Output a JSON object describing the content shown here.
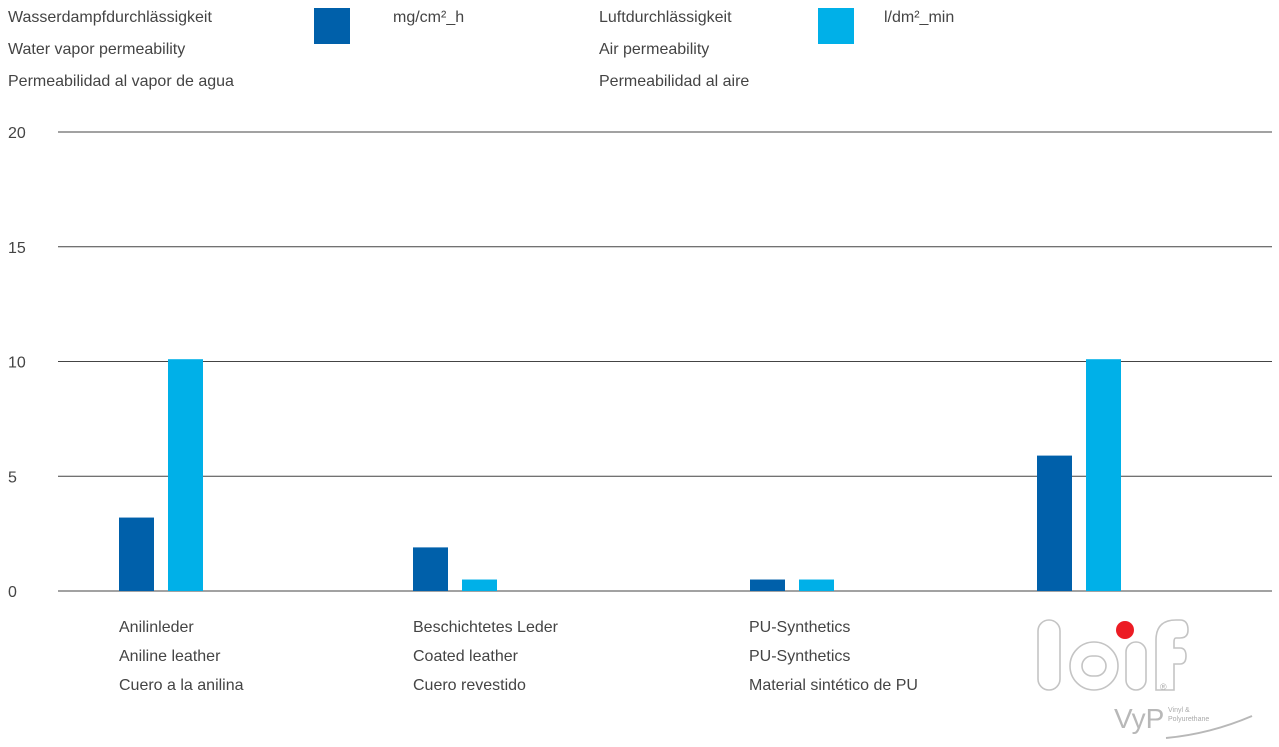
{
  "legend": {
    "series1": {
      "lines": [
        "Wasserdampfdurchlässigkeit",
        "Water vapor permeability",
        "Permeabilidad al vapor de agua"
      ],
      "unit": "mg/cm²_h",
      "color": "#0060aa"
    },
    "series2": {
      "lines": [
        "Luftdurchlässigkeit",
        "Air permeability",
        "Permeabilidad al aire"
      ],
      "unit": "l/dm²_min",
      "color": "#00b0e8"
    }
  },
  "chart_data": {
    "type": "bar",
    "categories": [
      [
        "Anilinleder",
        "Aniline leather",
        "Cuero a la anilina"
      ],
      [
        "Beschichtetes Leder",
        "Coated leather",
        "Cuero revestido"
      ],
      [
        "PU-Synthetics",
        "PU-Synthetics",
        "Material sintético de PU"
      ],
      [
        "laif VyP"
      ]
    ],
    "series": [
      {
        "name": "mg/cm²_h",
        "values": [
          3.2,
          1.9,
          0.5,
          5.9
        ]
      },
      {
        "name": "l/dm²_min",
        "values": [
          10.1,
          0.5,
          0.5,
          10.1
        ]
      }
    ],
    "ylim": [
      0,
      20
    ],
    "yticks": [
      "0",
      "5",
      "10",
      "15",
      "20"
    ],
    "grid": true,
    "legend_position": "top"
  },
  "logo": {
    "brand": "laif",
    "product": "VyP",
    "tagline_1": "Vinyl &",
    "tagline_2": "Polyurethane",
    "registered": "®"
  }
}
